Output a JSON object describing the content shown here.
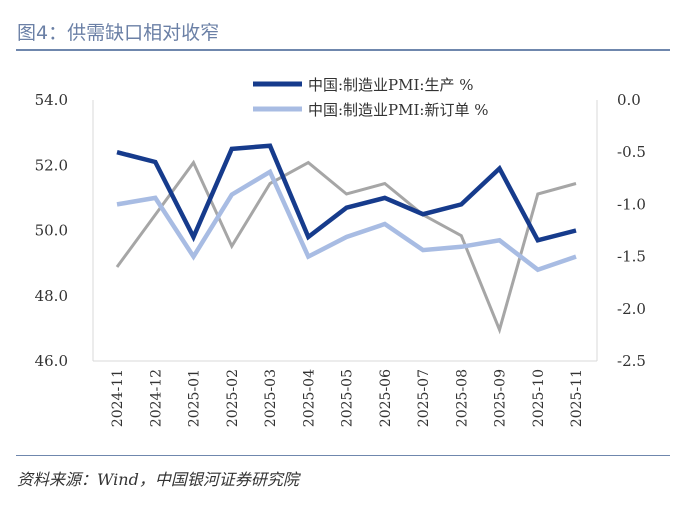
{
  "title": "图4：供需缺口相对收窄",
  "source": "资料来源：Wind，中国银河证券研究院",
  "chart_data": {
    "type": "line",
    "categories": [
      "2024-11",
      "2024-12",
      "2025-01",
      "2025-02",
      "2025-03",
      "2025-04",
      "2025-05",
      "2025-06",
      "2025-07",
      "2025-08",
      "2025-09",
      "2025-10",
      "2025-11"
    ],
    "left_axis": {
      "range": [
        46.0,
        54.0
      ],
      "ticks": [
        "54.0",
        "52.0",
        "50.0",
        "48.0",
        "46.0"
      ]
    },
    "right_axis": {
      "range": [
        -2.5,
        0.0
      ],
      "ticks": [
        "0.0",
        "-0.5",
        "-1.0",
        "-1.5",
        "-2.0",
        "-2.5"
      ]
    },
    "grid": false,
    "legend_position": "top",
    "series": [
      {
        "name": "中国:制造业PMI:生产 %",
        "axis": "left",
        "color": "#163b8c",
        "values": [
          52.4,
          52.1,
          49.8,
          52.5,
          52.6,
          49.8,
          50.7,
          51.0,
          50.5,
          50.8,
          51.9,
          49.7,
          50.0
        ]
      },
      {
        "name": "中国:制造业PMI:新订单 %",
        "axis": "left",
        "color": "#a8bce3",
        "values": [
          50.8,
          51.0,
          49.2,
          51.1,
          51.8,
          49.2,
          49.8,
          50.2,
          49.4,
          49.5,
          49.7,
          48.8,
          49.2
        ]
      },
      {
        "axis": "right",
        "color": "#a6a6a6",
        "values": [
          -1.6,
          -1.1,
          -0.6,
          -1.4,
          -0.8,
          -0.6,
          -0.9,
          -0.8,
          -1.1,
          -1.3,
          -2.2,
          -0.9,
          -0.8
        ]
      }
    ]
  }
}
